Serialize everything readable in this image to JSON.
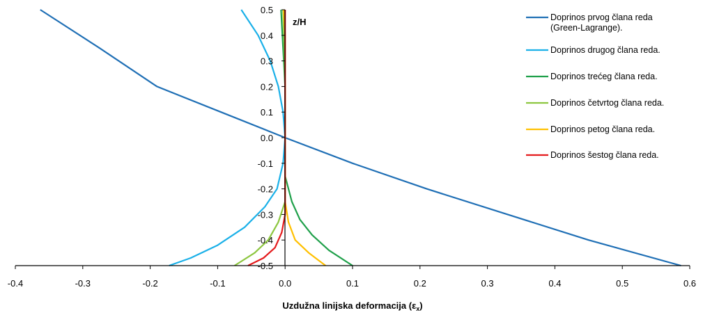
{
  "chart_data": {
    "type": "line",
    "title": "",
    "xlabel": "Uzdužna linijska deformacija (ε",
    "xlabel_sub": "x",
    "xlabel_close": ")",
    "ylabel": "z/H",
    "xlim": [
      -0.4,
      0.6
    ],
    "ylim": [
      -0.5,
      0.5
    ],
    "x_ticks": [
      "-0.4",
      "-0.3",
      "-0.2",
      "-0.1",
      "0.0",
      "0.1",
      "0.2",
      "0.3",
      "0.4",
      "0.5",
      "0.6"
    ],
    "y_ticks": [
      "0.5",
      "0.4",
      "0.3",
      "0.2",
      "0.1",
      "0.0",
      "-0.1",
      "-0.2",
      "-0.3",
      "-0.4",
      "-0.5"
    ],
    "grid": false,
    "legend_position": "right",
    "series": [
      {
        "name": "Doprinos prvog člana reda",
        "name_line2": "(Green-Lagrange).",
        "color": "#1f6fb5",
        "points": [
          [
            -0.363,
            0.5
          ],
          [
            -0.275,
            0.35
          ],
          [
            -0.19,
            0.2
          ],
          [
            -0.095,
            0.1
          ],
          [
            0.0,
            0.0
          ],
          [
            0.1,
            -0.1
          ],
          [
            0.21,
            -0.2
          ],
          [
            0.33,
            -0.3
          ],
          [
            0.45,
            -0.4
          ],
          [
            0.587,
            -0.5
          ]
        ]
      },
      {
        "name": "Doprinos drugog člana reda.",
        "color": "#1ab0e8",
        "points": [
          [
            -0.065,
            0.5
          ],
          [
            -0.04,
            0.4
          ],
          [
            -0.022,
            0.3
          ],
          [
            -0.01,
            0.2
          ],
          [
            -0.003,
            0.1
          ],
          [
            0.0,
            0.0
          ],
          [
            -0.003,
            -0.1
          ],
          [
            -0.012,
            -0.2
          ],
          [
            -0.03,
            -0.27
          ],
          [
            -0.06,
            -0.35
          ],
          [
            -0.1,
            -0.42
          ],
          [
            -0.14,
            -0.47
          ],
          [
            -0.172,
            -0.5
          ]
        ]
      },
      {
        "name": "Doprinos trećeg člana reda.",
        "color": "#1fa04a",
        "points": [
          [
            -0.006,
            0.5
          ],
          [
            -0.004,
            0.4
          ],
          [
            -0.002,
            0.3
          ],
          [
            0.0,
            0.2
          ],
          [
            0.0,
            0.0
          ],
          [
            0.0,
            -0.15
          ],
          [
            0.01,
            -0.25
          ],
          [
            0.022,
            -0.32
          ],
          [
            0.04,
            -0.38
          ],
          [
            0.065,
            -0.44
          ],
          [
            0.1,
            -0.5
          ]
        ]
      },
      {
        "name": "Doprinos četvrtog člana reda.",
        "color": "#8cc63f",
        "points": [
          [
            -0.003,
            0.5
          ],
          [
            -0.001,
            0.35
          ],
          [
            0.0,
            0.2
          ],
          [
            0.0,
            0.0
          ],
          [
            0.0,
            -0.25
          ],
          [
            -0.01,
            -0.33
          ],
          [
            -0.025,
            -0.4
          ],
          [
            -0.045,
            -0.45
          ],
          [
            -0.075,
            -0.5
          ]
        ]
      },
      {
        "name": "Doprinos petog člana reda.",
        "color": "#ffc000",
        "points": [
          [
            -0.002,
            0.5
          ],
          [
            0.0,
            0.4
          ],
          [
            0.0,
            0.0
          ],
          [
            0.0,
            -0.25
          ],
          [
            0.005,
            -0.33
          ],
          [
            0.015,
            -0.4
          ],
          [
            0.035,
            -0.45
          ],
          [
            0.06,
            -0.5
          ]
        ]
      },
      {
        "name": "Doprinos šestog člana reda.",
        "color": "#e41a1c",
        "points": [
          [
            0.0,
            0.5
          ],
          [
            0.0,
            0.0
          ],
          [
            0.0,
            -0.3
          ],
          [
            -0.005,
            -0.37
          ],
          [
            -0.015,
            -0.43
          ],
          [
            -0.032,
            -0.47
          ],
          [
            -0.055,
            -0.5
          ]
        ]
      }
    ]
  }
}
